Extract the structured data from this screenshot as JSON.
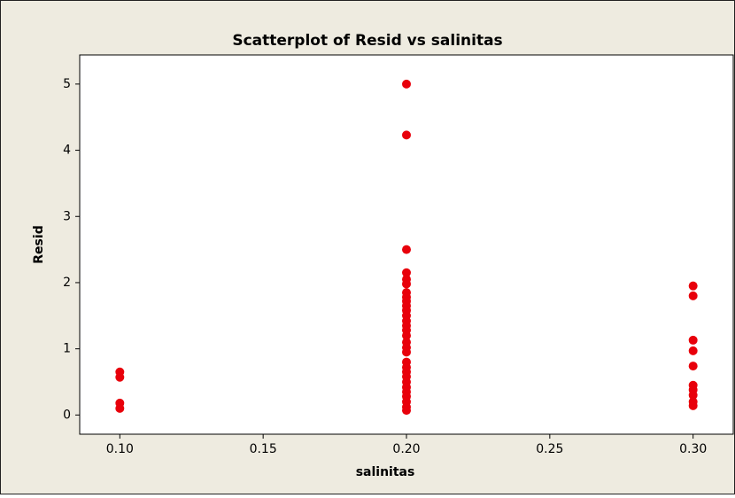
{
  "chart_data": {
    "type": "scatter",
    "title": "Scatterplot of Resid vs salinitas",
    "x_label": "salinitas",
    "y_label": "Resid",
    "series": [
      {
        "name": "Resid",
        "color": "#e8000b",
        "x": [
          0.1,
          0.1,
          0.1,
          0.1,
          0.2,
          0.2,
          0.2,
          0.2,
          0.2,
          0.2,
          0.2,
          0.2,
          0.2,
          0.2,
          0.2,
          0.2,
          0.2,
          0.2,
          0.2,
          0.2,
          0.2,
          0.2,
          0.2,
          0.2,
          0.2,
          0.2,
          0.2,
          0.2,
          0.2,
          0.2,
          0.2,
          0.2,
          0.2,
          0.2,
          0.3,
          0.3,
          0.3,
          0.3,
          0.3,
          0.3,
          0.3,
          0.3,
          0.3,
          0.3
        ],
        "values": [
          0.65,
          0.57,
          0.18,
          0.1,
          5.0,
          4.23,
          2.5,
          2.15,
          2.05,
          1.98,
          1.85,
          1.78,
          1.72,
          1.65,
          1.58,
          1.5,
          1.42,
          1.35,
          1.28,
          1.2,
          1.1,
          1.02,
          0.95,
          0.8,
          0.72,
          0.65,
          0.58,
          0.5,
          0.42,
          0.35,
          0.28,
          0.2,
          0.12,
          0.07,
          1.95,
          1.8,
          1.13,
          0.97,
          0.74,
          0.45,
          0.38,
          0.3,
          0.2,
          0.14
        ]
      }
    ],
    "xlim": [
      0.086,
      0.314
    ],
    "xticks": [
      {
        "value": 0.1,
        "label": "0.10"
      },
      {
        "value": 0.15,
        "label": "0.15"
      },
      {
        "value": 0.2,
        "label": "0.20"
      },
      {
        "value": 0.25,
        "label": "0.25"
      },
      {
        "value": 0.3,
        "label": "0.30"
      }
    ],
    "ylim": [
      -0.29,
      5.44
    ],
    "yticks": [
      0,
      1,
      2,
      3,
      4,
      5
    ]
  }
}
